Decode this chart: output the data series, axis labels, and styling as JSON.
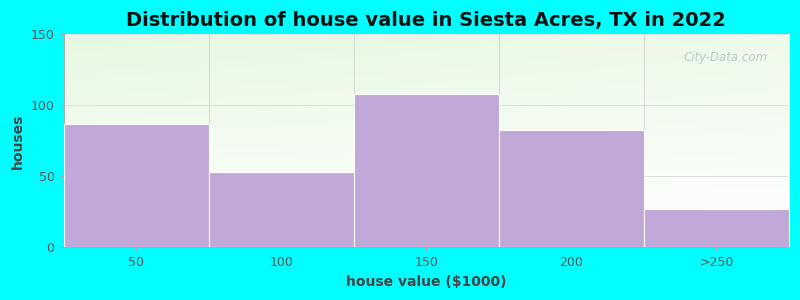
{
  "title": "Distribution of house value in Siesta Acres, TX in 2022",
  "xlabel": "house value ($1000)",
  "ylabel": "houses",
  "categories": [
    "50",
    "100",
    "150",
    "200",
    ">250"
  ],
  "values": [
    87,
    53,
    108,
    83,
    27
  ],
  "bar_color": "#C0A8D8",
  "bar_edgecolor": "#ffffff",
  "ylim": [
    0,
    150
  ],
  "yticks": [
    0,
    50,
    100,
    150
  ],
  "background_outer": "#00FFFF",
  "plot_bg_color_top_left": "#e8f5e0",
  "plot_bg_color_right": "#f8fcf8",
  "plot_bg_color_bottom": "#ffffff",
  "watermark_text": "City-Data.com",
  "title_fontsize": 14,
  "axis_label_fontsize": 10,
  "tick_fontsize": 9,
  "tick_color": "#555555",
  "grid_color": "#dddddd"
}
